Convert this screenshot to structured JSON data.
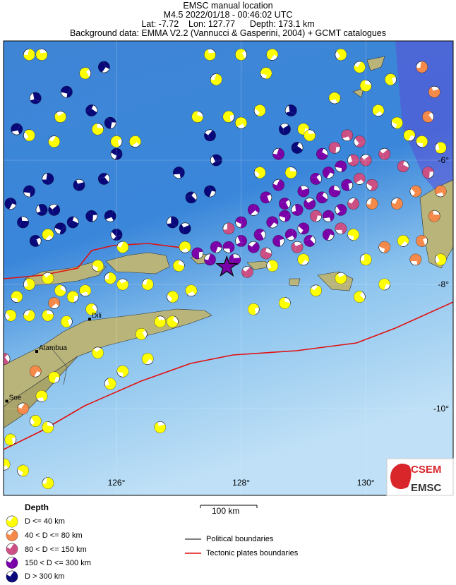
{
  "header": {
    "title": "EMSC manual location",
    "event": "M4.5  2022/01/18 - 00:46:02 UTC",
    "location": "Lat: -7.72    Lon: 127.77      Depth: 173.1 km",
    "background": "Background data: EMMA V2.2 (Vannucci & Gasperini, 2004) + GCMT catalogues"
  },
  "map": {
    "epicenter": {
      "lon": 127.77,
      "lat": -7.72,
      "depth_km": 173.1,
      "icon": "star-icon"
    },
    "lon_ticks": [
      {
        "v": 126,
        "label": "126°"
      },
      {
        "v": 128,
        "label": "128°"
      },
      {
        "v": 130,
        "label": "130°"
      }
    ],
    "lat_ticks": [
      {
        "v": -6,
        "label": "-6°"
      },
      {
        "v": -8,
        "label": "-8°"
      },
      {
        "v": -10,
        "label": "-10°"
      }
    ],
    "places": [
      {
        "name": "Dili",
        "lon": 125.57,
        "lat": -8.56
      },
      {
        "name": "Atambua",
        "lon": 124.72,
        "lat": -9.08
      },
      {
        "name": "Soe",
        "lon": 124.24,
        "lat": -9.88
      }
    ],
    "colors": {
      "1": "#ffff00",
      "2": "#f4894a",
      "3": "#cc4f84",
      "4": "#7a00a8",
      "5": "#08087a",
      "ocean": "#3f8fd8",
      "land": "#b9b57a",
      "plate": "#e01010",
      "political": "#555555"
    },
    "events": [
      [
        124.6,
        -4.3,
        1
      ],
      [
        124.8,
        -4.3,
        1
      ],
      [
        125.5,
        -4.6,
        1
      ],
      [
        125.8,
        -4.5,
        5
      ],
      [
        125.2,
        -4.9,
        5
      ],
      [
        124.7,
        -5.0,
        5
      ],
      [
        125.1,
        -5.3,
        1
      ],
      [
        125.6,
        -5.2,
        5
      ],
      [
        125.9,
        -5.4,
        5
      ],
      [
        124.4,
        -5.5,
        5
      ],
      [
        124.6,
        -5.6,
        1
      ],
      [
        125.0,
        -5.7,
        1
      ],
      [
        125.7,
        -5.5,
        1
      ],
      [
        126.0,
        -5.7,
        1
      ],
      [
        126.3,
        -5.7,
        1
      ],
      [
        126.0,
        -5.9,
        5
      ],
      [
        124.9,
        -6.3,
        5
      ],
      [
        125.4,
        -6.4,
        5
      ],
      [
        125.8,
        -6.3,
        5
      ],
      [
        124.3,
        -6.7,
        5
      ],
      [
        124.6,
        -6.5,
        5
      ],
      [
        124.8,
        -6.8,
        5
      ],
      [
        125.0,
        -6.8,
        5
      ],
      [
        125.3,
        -7.0,
        5
      ],
      [
        125.6,
        -6.9,
        5
      ],
      [
        125.9,
        -6.9,
        5
      ],
      [
        126.0,
        -7.2,
        5
      ],
      [
        126.1,
        -7.4,
        1
      ],
      [
        124.5,
        -7.0,
        5
      ],
      [
        124.7,
        -7.3,
        5
      ],
      [
        124.9,
        -7.2,
        1
      ],
      [
        125.1,
        -7.1,
        5
      ],
      [
        126.9,
        -7.0,
        5
      ],
      [
        127.1,
        -7.1,
        5
      ],
      [
        127.2,
        -6.6,
        5
      ],
      [
        127.5,
        -6.5,
        5
      ],
      [
        127.0,
        -6.2,
        5
      ],
      [
        127.6,
        -6.0,
        5
      ],
      [
        127.5,
        -5.6,
        5
      ],
      [
        127.3,
        -5.3,
        1
      ],
      [
        127.8,
        -5.3,
        1
      ],
      [
        128.0,
        -5.4,
        1
      ],
      [
        128.3,
        -5.2,
        1
      ],
      [
        127.6,
        -4.7,
        1
      ],
      [
        127.5,
        -4.3,
        1
      ],
      [
        128.0,
        -4.3,
        1
      ],
      [
        128.5,
        -4.3,
        1
      ],
      [
        128.4,
        -4.6,
        1
      ],
      [
        128.8,
        -5.2,
        5
      ],
      [
        128.7,
        -5.5,
        5
      ],
      [
        128.9,
        -5.8,
        5
      ],
      [
        129.0,
        -5.5,
        1
      ],
      [
        129.5,
        -5.0,
        1
      ],
      [
        129.6,
        -4.3,
        1
      ],
      [
        129.9,
        -4.5,
        1
      ],
      [
        130.0,
        -4.8,
        1
      ],
      [
        130.4,
        -4.7,
        1
      ],
      [
        130.2,
        -5.2,
        1
      ],
      [
        130.5,
        -5.4,
        1
      ],
      [
        130.9,
        -4.5,
        2
      ],
      [
        131.1,
        -4.9,
        2
      ],
      [
        131.0,
        -5.3,
        2
      ],
      [
        130.7,
        -5.6,
        1
      ],
      [
        130.9,
        -5.7,
        1
      ],
      [
        131.2,
        -5.8,
        1
      ],
      [
        130.3,
        -5.9,
        3
      ],
      [
        130.6,
        -6.1,
        3
      ],
      [
        131.0,
        -6.2,
        3
      ],
      [
        131.2,
        -6.5,
        2
      ],
      [
        130.8,
        -6.5,
        2
      ],
      [
        130.5,
        -6.7,
        2
      ],
      [
        131.1,
        -6.9,
        2
      ],
      [
        130.9,
        -7.3,
        2
      ],
      [
        130.6,
        -7.3,
        1
      ],
      [
        130.3,
        -7.4,
        2
      ],
      [
        130.0,
        -7.6,
        1
      ],
      [
        129.6,
        -7.9,
        1
      ],
      [
        129.9,
        -8.2,
        1
      ],
      [
        130.3,
        -8.0,
        1
      ],
      [
        130.8,
        -7.6,
        2
      ],
      [
        131.2,
        -7.6,
        1
      ],
      [
        129.2,
        -8.1,
        1
      ],
      [
        128.7,
        -8.3,
        1
      ],
      [
        128.2,
        -8.4,
        1
      ],
      [
        127.2,
        -8.1,
        1
      ],
      [
        126.9,
        -8.2,
        1
      ],
      [
        126.5,
        -8.0,
        1
      ],
      [
        126.7,
        -8.6,
        1
      ],
      [
        126.4,
        -8.8,
        1
      ],
      [
        126.5,
        -9.2,
        1
      ],
      [
        126.1,
        -9.4,
        1
      ],
      [
        125.9,
        -9.6,
        1
      ],
      [
        125.7,
        -9.1,
        1
      ],
      [
        126.9,
        -8.6,
        1
      ],
      [
        125.0,
        -9.5,
        1
      ],
      [
        124.8,
        -9.8,
        1
      ],
      [
        124.7,
        -10.2,
        1
      ],
      [
        124.5,
        -10.0,
        2
      ],
      [
        124.9,
        -10.3,
        1
      ],
      [
        124.3,
        -10.5,
        1
      ],
      [
        124.2,
        -10.9,
        1
      ],
      [
        124.5,
        -11.0,
        1
      ],
      [
        124.9,
        -11.2,
        1
      ],
      [
        126.7,
        -10.3,
        1
      ],
      [
        124.2,
        -9.2,
        3
      ],
      [
        124.7,
        -9.4,
        2
      ],
      [
        124.4,
        -8.2,
        1
      ],
      [
        124.6,
        -8.0,
        1
      ],
      [
        124.9,
        -7.9,
        1
      ],
      [
        125.1,
        -8.1,
        1
      ],
      [
        125.3,
        -8.2,
        1
      ],
      [
        125.5,
        -8.1,
        1
      ],
      [
        124.3,
        -8.5,
        1
      ],
      [
        124.6,
        -8.5,
        1
      ],
      [
        124.9,
        -8.5,
        1
      ],
      [
        125.2,
        -8.6,
        1
      ],
      [
        125.0,
        -8.3,
        2
      ],
      [
        125.7,
        -7.7,
        1
      ],
      [
        125.9,
        -7.9,
        1
      ],
      [
        126.1,
        -8.0,
        1
      ],
      [
        125.6,
        -8.4,
        1
      ],
      [
        127.6,
        -7.4,
        4
      ],
      [
        127.8,
        -7.4,
        4
      ],
      [
        128.0,
        -7.3,
        4
      ],
      [
        128.2,
        -7.4,
        4
      ],
      [
        128.4,
        -7.5,
        3
      ],
      [
        128.6,
        -7.3,
        4
      ],
      [
        128.8,
        -7.2,
        4
      ],
      [
        129.0,
        -7.1,
        4
      ],
      [
        127.5,
        -7.6,
        4
      ],
      [
        127.9,
        -7.6,
        4
      ],
      [
        128.3,
        -7.2,
        4
      ],
      [
        128.5,
        -7.0,
        4
      ],
      [
        128.7,
        -6.9,
        4
      ],
      [
        128.9,
        -6.8,
        4
      ],
      [
        129.1,
        -6.7,
        4
      ],
      [
        129.3,
        -6.6,
        4
      ],
      [
        129.2,
        -6.9,
        3
      ],
      [
        129.4,
        -6.9,
        4
      ],
      [
        129.6,
        -6.8,
        4
      ],
      [
        129.8,
        -6.7,
        3
      ],
      [
        129.5,
        -6.5,
        4
      ],
      [
        129.7,
        -6.4,
        4
      ],
      [
        129.9,
        -6.3,
        3
      ],
      [
        130.1,
        -6.4,
        3
      ],
      [
        130.1,
        -6.7,
        2
      ],
      [
        129.0,
        -6.5,
        4
      ],
      [
        129.2,
        -6.3,
        4
      ],
      [
        129.4,
        -6.2,
        4
      ],
      [
        129.6,
        -6.1,
        4
      ],
      [
        129.8,
        -6.0,
        3
      ],
      [
        130.0,
        -6.0,
        3
      ],
      [
        129.3,
        -5.9,
        4
      ],
      [
        129.5,
        -5.8,
        3
      ],
      [
        129.7,
        -5.6,
        3
      ],
      [
        129.9,
        -5.7,
        3
      ],
      [
        128.6,
        -6.4,
        4
      ],
      [
        128.8,
        -6.2,
        1
      ],
      [
        128.4,
        -6.6,
        4
      ],
      [
        128.2,
        -6.8,
        4
      ],
      [
        128.0,
        -7.0,
        4
      ],
      [
        127.8,
        -7.1,
        3
      ],
      [
        128.9,
        -7.4,
        3
      ],
      [
        129.1,
        -7.3,
        4
      ],
      [
        129.4,
        -7.2,
        4
      ],
      [
        129.6,
        -7.1,
        3
      ],
      [
        128.5,
        -7.7,
        1
      ],
      [
        128.1,
        -7.8,
        3
      ],
      [
        127.0,
        -7.7,
        1
      ],
      [
        127.3,
        -7.5,
        4
      ],
      [
        127.1,
        -7.4,
        1
      ],
      [
        128.3,
        -6.2,
        1
      ],
      [
        128.6,
        -5.9,
        4
      ],
      [
        129.1,
        -5.6,
        1
      ],
      [
        128.7,
        -6.7,
        4
      ],
      [
        129.0,
        -7.6,
        1
      ],
      [
        129.8,
        -7.2,
        1
      ]
    ]
  },
  "legend": {
    "title": "Depth",
    "items": [
      {
        "label": "D <= 40 km",
        "cls": "1"
      },
      {
        "label": "40 < D <= 80 km",
        "cls": "2"
      },
      {
        "label": "80 < D <= 150 km",
        "cls": "3"
      },
      {
        "label": "150 < D <= 300 km",
        "cls": "4"
      },
      {
        "label": "D > 300 km",
        "cls": "5"
      }
    ],
    "scale_label": "100 km",
    "lines": [
      {
        "label": "Political boundaries",
        "color": "#555555"
      },
      {
        "label": "Tectonic plates boundaries",
        "color": "#e01010"
      }
    ]
  },
  "logo": {
    "top": "CSEM",
    "bottom": "EMSC"
  }
}
